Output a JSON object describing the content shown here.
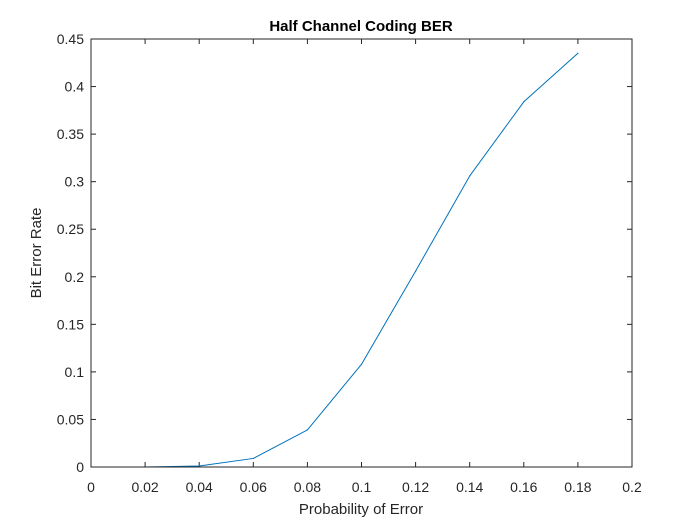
{
  "chart_data": {
    "type": "line",
    "title": "Half Channel Coding BER",
    "xlabel": "Probability of Error",
    "ylabel": "Bit Error Rate",
    "xlim": [
      0,
      0.2
    ],
    "ylim": [
      0,
      0.45
    ],
    "x_ticks": [
      "0",
      "0.02",
      "0.04",
      "0.06",
      "0.08",
      "0.1",
      "0.12",
      "0.14",
      "0.16",
      "0.18",
      "0.2"
    ],
    "y_ticks": [
      "0",
      "0.05",
      "0.1",
      "0.15",
      "0.2",
      "0.25",
      "0.3",
      "0.35",
      "0.4",
      "0.45"
    ],
    "grid": false,
    "series": [
      {
        "color": "#0072bd",
        "x": [
          0,
          0.02,
          0.04,
          0.06,
          0.08,
          0.1,
          0.12,
          0.14,
          0.16,
          0.18
        ],
        "y": [
          0,
          0,
          0.001,
          0.009,
          0.039,
          0.108,
          0.206,
          0.306,
          0.384,
          0.435
        ]
      }
    ]
  }
}
